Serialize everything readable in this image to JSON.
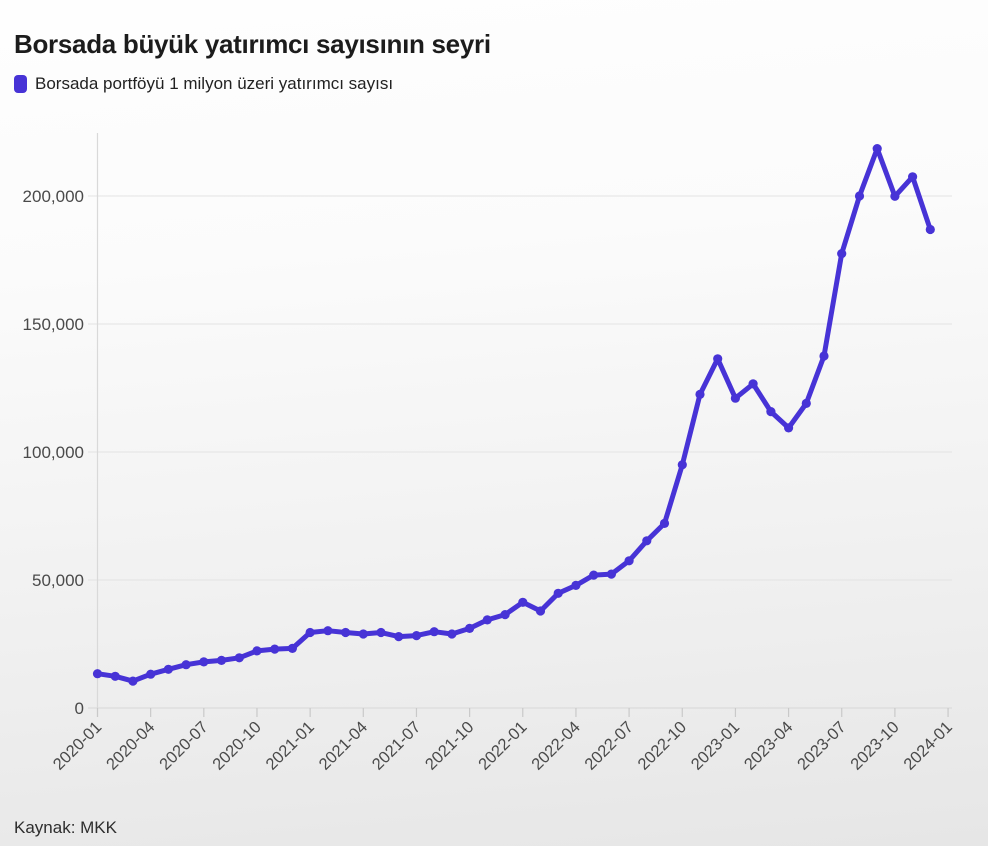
{
  "chart_data": {
    "type": "line",
    "title": "Borsada büyük yatırımcı sayısının seyri",
    "series_name": "Borsada portföyü 1 milyon üzeri yatırımcı sayısı",
    "source": "Kaynak: MKK",
    "xlabel": "",
    "ylabel": "",
    "grid": true,
    "legend_position": "top-left",
    "line_color": "#4733d6",
    "grid_color": "#e3e3e3",
    "axis_line_color": "#d9d9d9",
    "tick_text_color": "#4a4a4a",
    "ylim": [
      0,
      225000
    ],
    "y_ticks": [
      0,
      50000,
      100000,
      150000,
      200000
    ],
    "y_tick_labels": [
      "0",
      "50,000",
      "100,000",
      "150,000",
      "200,000"
    ],
    "x_tick_labels": [
      "2020-01",
      "2020-04",
      "2020-07",
      "2020-10",
      "2021-01",
      "2021-04",
      "2021-07",
      "2021-10",
      "2022-01",
      "2022-04",
      "2022-07",
      "2022-10",
      "2023-01",
      "2023-04",
      "2023-07",
      "2023-10",
      "2024-01"
    ],
    "x": [
      "2020-01",
      "2020-02",
      "2020-03",
      "2020-04",
      "2020-05",
      "2020-06",
      "2020-07",
      "2020-08",
      "2020-09",
      "2020-10",
      "2020-11",
      "2020-12",
      "2021-01",
      "2021-02",
      "2021-03",
      "2021-04",
      "2021-05",
      "2021-06",
      "2021-07",
      "2021-08",
      "2021-09",
      "2021-10",
      "2021-11",
      "2021-12",
      "2022-01",
      "2022-02",
      "2022-03",
      "2022-04",
      "2022-05",
      "2022-06",
      "2022-07",
      "2022-08",
      "2022-09",
      "2022-10",
      "2022-11",
      "2022-12",
      "2023-01",
      "2023-02",
      "2023-03",
      "2023-04",
      "2023-05",
      "2023-06",
      "2023-07",
      "2023-08",
      "2023-09",
      "2023-10",
      "2023-11",
      "2023-12"
    ],
    "values": [
      13400,
      12400,
      10500,
      13200,
      15100,
      16900,
      18000,
      18600,
      19600,
      22300,
      23000,
      23300,
      29500,
      30200,
      29500,
      28900,
      29500,
      27900,
      28300,
      29800,
      28900,
      31100,
      34400,
      36500,
      41300,
      37900,
      44800,
      47900,
      51900,
      52300,
      57500,
      65300,
      72100,
      95000,
      122500,
      136400,
      121000,
      126600,
      115800,
      109400,
      119000,
      137500,
      177500,
      200000,
      218500,
      199900,
      207500,
      186900
    ]
  }
}
